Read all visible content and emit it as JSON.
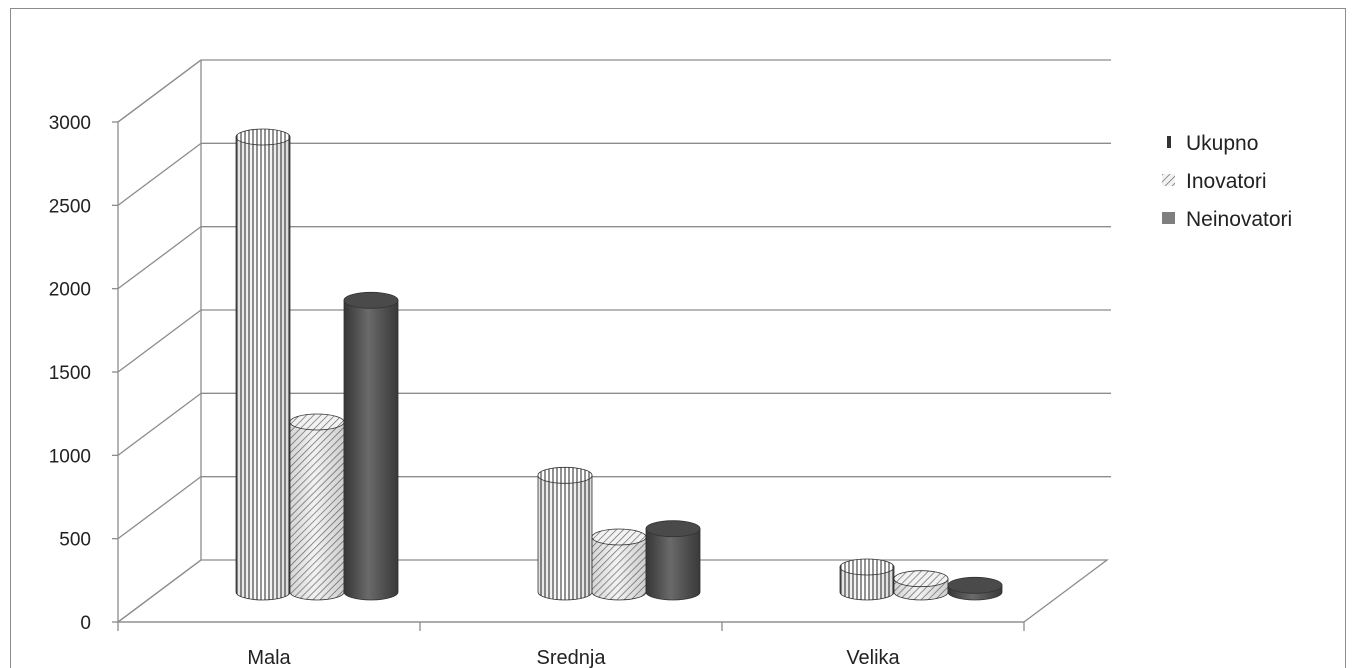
{
  "chart_data": {
    "type": "bar",
    "style": "3d-cylinder",
    "categories": [
      "Mala",
      "Srednja",
      "Velika"
    ],
    "series": [
      {
        "name": "Ukupno",
        "values": [
          2730,
          700,
          150
        ],
        "pattern": "vertical-lines",
        "color": "#ffffff"
      },
      {
        "name": "Inovatori",
        "values": [
          1020,
          330,
          80
        ],
        "pattern": "diagonal-lines",
        "color": "#e8e8e8"
      },
      {
        "name": "Neinovatori",
        "values": [
          1750,
          380,
          40
        ],
        "pattern": "solid",
        "color": "#595959"
      }
    ],
    "yticks": [
      "0",
      "500",
      "1000",
      "1500",
      "2000",
      "2500",
      "3000"
    ],
    "ylim": [
      0,
      3000
    ],
    "grid": true,
    "legend_position": "right"
  }
}
